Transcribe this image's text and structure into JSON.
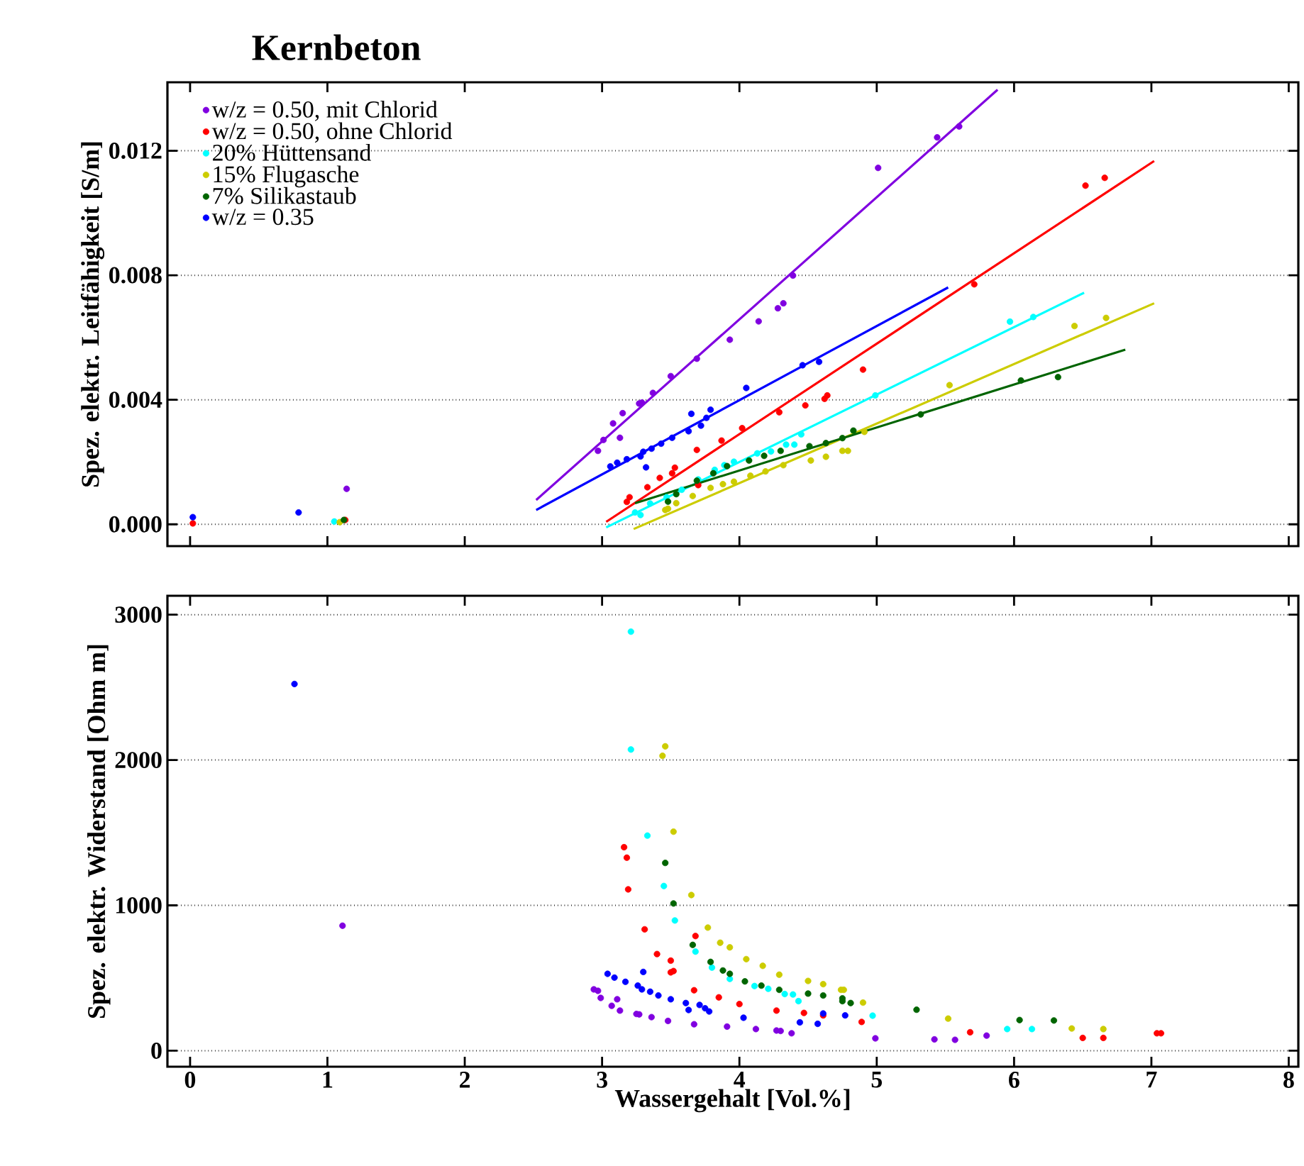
{
  "chart_data": [
    {
      "type": "scatter",
      "title": "Kernbeton",
      "ylabel": "Spez. elektr. Leitfähigkeit [S/m]",
      "xlim": [
        -0.165,
        8.07
      ],
      "ylim": [
        -0.0007,
        0.0142
      ],
      "xticks": [
        0,
        1,
        2,
        3,
        4,
        5,
        6,
        7,
        8
      ],
      "yticks": [
        {
          "value": 0,
          "label": "0.000"
        },
        0.004,
        0.008,
        0.012
      ],
      "tick_labels": "y",
      "grid": "y",
      "legend": "top left",
      "marker": "circle",
      "series": [
        {
          "name": "w/z = 0.50, mit Chlorid",
          "color": "#8000e0",
          "x": [
            1.14,
            2.97,
            3.01,
            3.08,
            3.13,
            3.15,
            3.27,
            3.29,
            3.37,
            3.5,
            3.69,
            3.93,
            4.14,
            4.28,
            4.32,
            4.39,
            5.01,
            5.44,
            5.6
          ],
          "values": [
            0.00114,
            0.00236,
            0.00271,
            0.00324,
            0.00278,
            0.00357,
            0.00388,
            0.00391,
            0.00422,
            0.00476,
            0.00532,
            0.00593,
            0.00652,
            0.00694,
            0.0071,
            0.00799,
            0.01145,
            0.01243,
            0.01278
          ]
        },
        {
          "name": "w/z = 0.50, ohne Chlorid",
          "color": "#ff0000",
          "x": [
            0.02,
            1.13,
            3.18,
            3.2,
            3.33,
            3.42,
            3.51,
            3.53,
            3.69,
            3.7,
            3.87,
            4.02,
            4.29,
            4.48,
            4.62,
            4.64,
            4.9,
            5.71,
            6.52,
            6.66
          ],
          "values": [
            3e-05,
            0.00014,
            0.00072,
            0.00087,
            0.00119,
            0.00149,
            0.00164,
            0.00182,
            0.00239,
            0.00126,
            0.00269,
            0.00309,
            0.0036,
            0.00382,
            0.00403,
            0.00414,
            0.00497,
            0.00771,
            0.01088,
            0.01113
          ]
        },
        {
          "name": "20% Hüttensand",
          "color": "#00ffff",
          "x": [
            1.05,
            3.24,
            3.28,
            3.35,
            3.47,
            3.58,
            3.7,
            3.82,
            3.89,
            3.96,
            4.13,
            4.23,
            4.34,
            4.4,
            4.45,
            4.99,
            5.97,
            6.14
          ],
          "values": [
            9e-05,
            0.00038,
            0.0003,
            0.00067,
            0.00087,
            0.00111,
            0.00144,
            0.00175,
            0.0019,
            0.00201,
            0.00228,
            0.00234,
            0.00256,
            0.00256,
            0.00289,
            0.00414,
            0.00651,
            0.00666
          ]
        },
        {
          "name": "15% Flugasche",
          "color": "#cccc00",
          "x": [
            1.09,
            3.46,
            3.48,
            3.54,
            3.66,
            3.79,
            3.88,
            3.96,
            4.08,
            4.19,
            4.32,
            4.52,
            4.63,
            4.75,
            4.79,
            4.91,
            5.53,
            6.44,
            6.67
          ],
          "values": [
            7e-05,
            0.00046,
            0.0005,
            0.00068,
            0.00091,
            0.00117,
            0.00129,
            0.00137,
            0.00156,
            0.0017,
            0.0019,
            0.00205,
            0.00217,
            0.00236,
            0.00236,
            0.00297,
            0.00447,
            0.00637,
            0.00663
          ]
        },
        {
          "name": "7% Silikastaub",
          "color": "#006400",
          "x": [
            1.12,
            3.48,
            3.54,
            3.69,
            3.81,
            3.91,
            4.07,
            4.18,
            4.3,
            4.51,
            4.63,
            4.75,
            4.83,
            5.32,
            6.05,
            6.32
          ],
          "values": [
            0.00014,
            0.00073,
            0.00097,
            0.0014,
            0.00164,
            0.00187,
            0.00205,
            0.0022,
            0.00236,
            0.00251,
            0.00261,
            0.00277,
            0.00301,
            0.00353,
            0.00462,
            0.00473
          ]
        },
        {
          "name": "w/z = 0.35",
          "color": "#0000ff",
          "x": [
            0.02,
            0.79,
            3.06,
            3.11,
            3.18,
            3.28,
            3.3,
            3.32,
            3.36,
            3.43,
            3.51,
            3.63,
            3.65,
            3.72,
            3.76,
            3.79,
            4.05,
            4.46,
            4.58
          ],
          "values": [
            0.00023,
            0.00038,
            0.00186,
            0.00198,
            0.00209,
            0.00218,
            0.00233,
            0.00183,
            0.00243,
            0.00259,
            0.00278,
            0.00299,
            0.00355,
            0.00317,
            0.00342,
            0.00368,
            0.00438,
            0.00511,
            0.00522
          ]
        },
        {
          "type": "line",
          "marker": "none",
          "color": "#8000e0",
          "x": [
            2.52,
            5.88
          ],
          "values": [
            0.00078,
            0.01396
          ]
        },
        {
          "type": "line",
          "marker": "none",
          "color": "#ff0000",
          "x": [
            3.03,
            7.02
          ],
          "values": [
            8e-05,
            0.01167
          ]
        },
        {
          "type": "line",
          "marker": "none",
          "color": "#00ffff",
          "x": [
            3.03,
            6.51
          ],
          "values": [
            -0.0001,
            0.00744
          ]
        },
        {
          "type": "line",
          "marker": "none",
          "color": "#cccc00",
          "x": [
            3.23,
            7.02
          ],
          "values": [
            -0.00015,
            0.0071
          ]
        },
        {
          "type": "line",
          "marker": "none",
          "color": "#006400",
          "x": [
            3.24,
            6.81
          ],
          "values": [
            0.00068,
            0.00561
          ]
        },
        {
          "type": "line",
          "marker": "none",
          "color": "#0000ff",
          "x": [
            2.52,
            5.52
          ],
          "values": [
            0.00046,
            0.00761
          ]
        }
      ]
    },
    {
      "type": "scatter",
      "xlabel": "Wassergehalt [Vol.%]",
      "ylabel": "Spez. elektr. Widerstand [Ohm m]",
      "xlim": [
        -0.165,
        8.07
      ],
      "ylim": [
        -110,
        3130
      ],
      "xticks": [
        0,
        1,
        2,
        3,
        4,
        5,
        6,
        7,
        8
      ],
      "yticks": [
        0,
        1000,
        2000,
        3000
      ],
      "grid": "y",
      "marker": "circle",
      "series": [
        {
          "color": "#8000e0",
          "x": [
            1.11,
            2.94,
            2.97,
            2.99,
            3.07,
            3.11,
            3.13,
            3.25,
            3.27,
            3.36,
            3.48,
            3.67,
            3.91,
            4.12,
            4.27,
            4.3,
            4.38,
            4.99,
            5.42,
            5.57,
            5.8
          ],
          "values": [
            860,
            422,
            412,
            363,
            309,
            354,
            276,
            253,
            250,
            231,
            205,
            182,
            166,
            149,
            139,
            136,
            120,
            85,
            78,
            75,
            104
          ]
        },
        {
          "color": "#ff0000",
          "x": [
            3.16,
            3.18,
            3.19,
            3.31,
            3.4,
            3.5,
            3.52,
            3.5,
            3.68,
            3.67,
            3.85,
            4.0,
            4.27,
            4.47,
            4.61,
            4.89,
            5.68,
            6.5,
            6.65,
            7.04,
            7.07
          ],
          "values": [
            1400,
            1328,
            1110,
            835,
            665,
            620,
            548,
            539,
            789,
            416,
            367,
            321,
            276,
            260,
            243,
            198,
            127,
            88,
            88,
            120,
            120
          ]
        },
        {
          "color": "#00ffff",
          "x": [
            3.21,
            3.21,
            3.33,
            3.45,
            3.53,
            3.68,
            3.8,
            3.93,
            4.11,
            4.21,
            4.33,
            4.39,
            4.43,
            4.97,
            5.95,
            6.13
          ],
          "values": [
            2883,
            2072,
            1480,
            1133,
            896,
            682,
            572,
            494,
            445,
            426,
            390,
            387,
            341,
            241,
            149,
            149
          ]
        },
        {
          "color": "#cccc00",
          "x": [
            3.46,
            3.44,
            3.52,
            3.65,
            3.77,
            3.86,
            3.93,
            4.05,
            4.17,
            4.29,
            4.5,
            4.61,
            4.74,
            4.76,
            4.9,
            5.52,
            6.42,
            6.65
          ],
          "values": [
            2094,
            2029,
            1507,
            1071,
            847,
            743,
            711,
            630,
            584,
            523,
            480,
            458,
            419,
            419,
            331,
            221,
            153,
            149
          ]
        },
        {
          "color": "#006400",
          "x": [
            3.46,
            3.52,
            3.66,
            3.79,
            3.88,
            3.93,
            4.04,
            4.16,
            4.29,
            4.5,
            4.61,
            4.75,
            4.75,
            4.81,
            5.29,
            6.04,
            6.29
          ],
          "values": [
            1292,
            1013,
            728,
            611,
            552,
            529,
            477,
            448,
            419,
            393,
            380,
            360,
            341,
            328,
            282,
            211,
            208
          ]
        },
        {
          "color": "#0000ff",
          "x": [
            0.76,
            3.04,
            3.09,
            3.17,
            3.3,
            3.26,
            3.29,
            3.35,
            3.41,
            3.5,
            3.61,
            3.63,
            3.71,
            3.75,
            3.78,
            4.03,
            4.44,
            4.57,
            4.61,
            4.77
          ],
          "values": [
            2523,
            529,
            503,
            474,
            542,
            448,
            422,
            406,
            380,
            354,
            328,
            280,
            315,
            292,
            270,
            227,
            195,
            185,
            256,
            243
          ]
        }
      ]
    }
  ]
}
